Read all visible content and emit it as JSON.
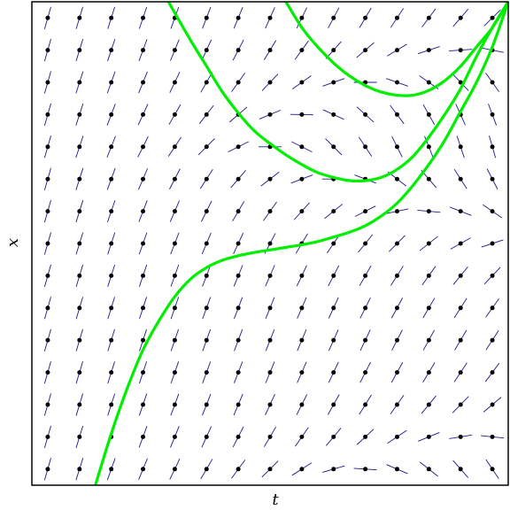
{
  "chart_data": {
    "type": "slope_field",
    "title": "",
    "xlabel": "t",
    "ylabel": "x",
    "xlim": [
      0,
      15
    ],
    "ylim": [
      0,
      15
    ],
    "grid": false,
    "field_rows": 15,
    "field_cols": 15,
    "field_slopes": [
      [
        3.5,
        3.14,
        2.79,
        2.43,
        2.07,
        1.71,
        1.36,
        1.0,
        0.64,
        0.29,
        -0.07,
        -0.43,
        -0.79,
        -1.14,
        -1.5
      ],
      [
        3.5,
        3.24,
        2.99,
        2.73,
        2.47,
        2.21,
        1.96,
        1.7,
        1.44,
        1.19,
        0.93,
        0.67,
        0.41,
        0.16,
        -0.1
      ],
      [
        3.5,
        3.31,
        3.12,
        2.93,
        2.74,
        2.55,
        2.36,
        2.17,
        1.98,
        1.79,
        1.6,
        1.41,
        1.22,
        1.03,
        0.84
      ],
      [
        3.5,
        3.35,
        3.19,
        3.04,
        2.89,
        2.73,
        2.58,
        2.43,
        2.27,
        2.12,
        1.96,
        1.81,
        1.66,
        1.5,
        1.35
      ],
      [
        3.5,
        3.36,
        3.22,
        3.08,
        2.94,
        2.8,
        2.66,
        2.52,
        2.38,
        2.24,
        2.1,
        1.96,
        1.82,
        1.68,
        1.54
      ],
      [
        3.5,
        3.35,
        3.21,
        3.06,
        2.91,
        2.76,
        2.61,
        2.46,
        2.31,
        2.16,
        2.01,
        1.86,
        1.71,
        1.56,
        1.41
      ],
      [
        3.5,
        3.32,
        3.15,
        2.97,
        2.8,
        2.62,
        2.45,
        2.27,
        2.1,
        1.92,
        1.75,
        1.57,
        1.4,
        1.22,
        1.05
      ],
      [
        3.5,
        3.27,
        3.05,
        2.82,
        2.6,
        2.37,
        2.14,
        1.92,
        1.69,
        1.47,
        1.24,
        1.01,
        0.79,
        0.56,
        0.33
      ],
      [
        3.5,
        3.2,
        2.9,
        2.6,
        2.31,
        2.01,
        1.71,
        1.41,
        1.11,
        0.81,
        0.51,
        0.21,
        -0.09,
        -0.39,
        -0.69
      ],
      [
        3.5,
        3.11,
        2.72,
        2.33,
        1.94,
        1.55,
        1.16,
        0.77,
        0.38,
        0.0,
        -0.38,
        -0.77,
        -1.16,
        -1.55,
        -1.94
      ],
      [
        3.5,
        3.0,
        2.5,
        2.0,
        1.5,
        1.0,
        0.5,
        0.0,
        -0.5,
        -1.0,
        -1.5,
        -2.0,
        -2.5,
        -3.0,
        -3.5
      ],
      [
        3.5,
        3.06,
        2.62,
        2.18,
        1.74,
        1.3,
        0.86,
        0.42,
        -0.02,
        -0.46,
        -0.9,
        -1.34,
        -1.78,
        -2.22,
        -2.66
      ],
      [
        3.5,
        3.15,
        2.8,
        2.45,
        2.1,
        1.75,
        1.4,
        1.05,
        0.7,
        0.35,
        0.0,
        -0.35,
        -0.7,
        -1.05,
        -1.4
      ],
      [
        3.5,
        3.24,
        2.97,
        2.71,
        2.44,
        2.18,
        1.92,
        1.65,
        1.39,
        1.12,
        0.86,
        0.6,
        0.33,
        0.07,
        -0.2
      ],
      [
        3.5,
        3.32,
        3.14,
        2.96,
        2.78,
        2.6,
        2.42,
        2.24,
        2.06,
        1.88,
        1.7,
        1.52,
        1.34,
        1.16,
        0.98
      ]
    ],
    "series": [
      {
        "x": [
          2.0,
          2.5,
          3.0,
          3.5,
          4.0,
          4.5,
          5.0,
          5.5,
          6.0,
          6.5,
          7.0,
          7.5,
          8.0,
          8.5,
          9.0,
          9.5,
          10.0,
          10.5,
          11.0,
          11.5,
          12.0,
          12.5,
          13.0,
          13.5,
          14.0,
          14.5,
          15.0
        ],
        "y": [
          0.0,
          1.6,
          3.0,
          4.2,
          5.1,
          5.85,
          6.4,
          6.75,
          6.98,
          7.12,
          7.22,
          7.3,
          7.38,
          7.46,
          7.56,
          7.7,
          7.85,
          8.05,
          8.35,
          8.75,
          9.3,
          9.95,
          10.7,
          11.6,
          12.5,
          13.6,
          15.0
        ]
      },
      {
        "x": [
          4.3,
          5.0,
          5.5,
          6.0,
          6.5,
          7.0,
          7.5,
          8.0,
          8.5,
          9.0,
          9.5,
          10.0,
          10.5,
          11.0,
          11.5,
          12.0,
          12.5,
          13.0,
          13.5,
          14.0,
          14.5,
          15.0
        ],
        "y": [
          15.0,
          13.8,
          13.0,
          12.2,
          11.55,
          11.0,
          10.6,
          10.25,
          9.95,
          9.7,
          9.55,
          9.45,
          9.45,
          9.55,
          9.8,
          10.2,
          10.8,
          11.5,
          12.3,
          13.3,
          14.2,
          15.0
        ]
      },
      {
        "x": [
          8.0,
          8.5,
          9.0,
          9.5,
          10.0,
          10.5,
          11.0,
          11.5,
          12.0,
          12.5,
          13.0,
          13.5,
          14.0,
          14.5,
          15.0
        ],
        "y": [
          15.0,
          14.2,
          13.6,
          13.1,
          12.7,
          12.4,
          12.2,
          12.1,
          12.1,
          12.25,
          12.55,
          13.0,
          13.6,
          14.2,
          15.0
        ]
      }
    ],
    "colors": {
      "solution": "#00ee00",
      "slope_segment": "#1a1a8c",
      "dot": "#000000",
      "frame": "#000000"
    }
  }
}
